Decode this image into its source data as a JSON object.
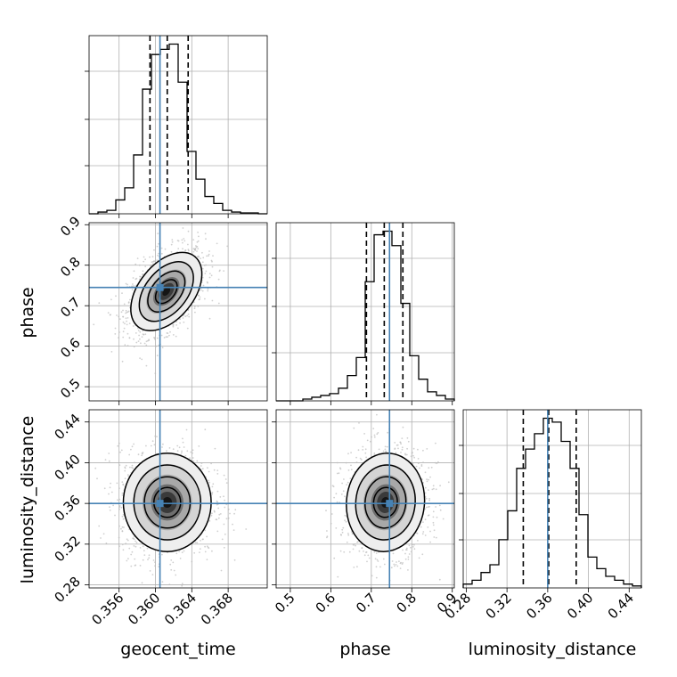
{
  "chart_data": {
    "type": "corner",
    "title": "",
    "parameters": [
      "geocent_time",
      "phase",
      "luminosity_distance"
    ],
    "truths": [
      0.3605,
      0.745,
      0.36
    ],
    "truth_color": "#4682b4",
    "ranges": [
      [
        0.3527,
        0.3723
      ],
      [
        0.465,
        0.905
      ],
      [
        0.277,
        0.452
      ]
    ],
    "ticks": [
      {
        "values": [
          0.356,
          0.36,
          0.364,
          0.368
        ],
        "labels": [
          "0.356",
          "0.360",
          "0.364",
          "0.368"
        ]
      },
      {
        "values": [
          0.5,
          0.6,
          0.7,
          0.8,
          0.9
        ],
        "labels": [
          "0.5",
          "0.6",
          "0.7",
          "0.8",
          "0.9"
        ]
      },
      {
        "values": [
          0.28,
          0.32,
          0.36,
          0.4,
          0.44
        ],
        "labels": [
          "0.28",
          "0.32",
          "0.36",
          "0.40",
          "0.44"
        ]
      }
    ],
    "quantiles": [
      [
        0.3594,
        0.3613,
        0.3636
      ],
      [
        0.688,
        0.732,
        0.778
      ],
      [
        0.336,
        0.361,
        0.388
      ]
    ],
    "histograms": [
      {
        "edges": [
          0.3527,
          0.35368,
          0.35466,
          0.35564,
          0.35662,
          0.3576,
          0.35858,
          0.35956,
          0.36054,
          0.36152,
          0.3625,
          0.36348,
          0.36446,
          0.36544,
          0.36642,
          0.3674,
          0.36838,
          0.36936,
          0.37034,
          0.37132,
          0.3723
        ],
        "counts": [
          0,
          1,
          2,
          8,
          15,
          34,
          72,
          92,
          95,
          98,
          76,
          36,
          20,
          10,
          6,
          2,
          1,
          0.5,
          0.5,
          0
        ]
      },
      {
        "edges": [
          0.465,
          0.487,
          0.509,
          0.531,
          0.553,
          0.575,
          0.597,
          0.619,
          0.641,
          0.663,
          0.685,
          0.707,
          0.729,
          0.751,
          0.773,
          0.795,
          0.817,
          0.839,
          0.861,
          0.883,
          0.905
        ],
        "counts": [
          0,
          0,
          0,
          1,
          2,
          3,
          4,
          7,
          14,
          24,
          66,
          92,
          94,
          86,
          54,
          25,
          12,
          5,
          3,
          1
        ]
      },
      {
        "edges": [
          0.277,
          0.28575,
          0.2945,
          0.30325,
          0.312,
          0.32075,
          0.3295,
          0.33825,
          0.347,
          0.35575,
          0.3645,
          0.37325,
          0.382,
          0.39075,
          0.3995,
          0.40825,
          0.417,
          0.42575,
          0.4345,
          0.44325,
          0.452
        ],
        "counts": [
          2,
          4,
          8,
          12,
          25,
          40,
          62,
          72,
          80,
          88,
          86,
          76,
          62,
          38,
          16,
          10,
          6,
          4,
          2,
          1
        ]
      }
    ],
    "pairs": [
      {
        "x": 0,
        "y": 1,
        "mean": [
          0.3612,
          0.735
        ],
        "sd": [
          0.0017,
          0.042
        ],
        "corr": 0.45
      },
      {
        "x": 0,
        "y": 2,
        "mean": [
          0.3613,
          0.361
        ],
        "sd": [
          0.0021,
          0.021
        ],
        "corr": 0.0
      },
      {
        "x": 1,
        "y": 2,
        "mean": [
          0.735,
          0.361
        ],
        "sd": [
          0.042,
          0.021
        ],
        "corr": 0.05
      }
    ]
  }
}
